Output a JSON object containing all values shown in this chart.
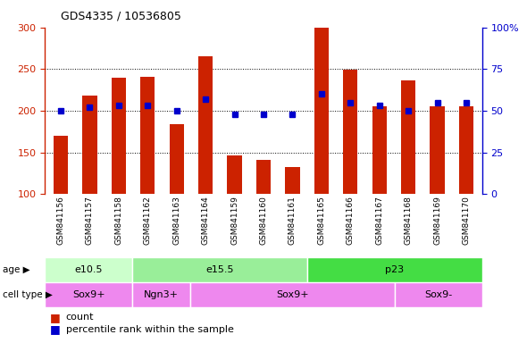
{
  "title": "GDS4335 / 10536805",
  "samples": [
    "GSM841156",
    "GSM841157",
    "GSM841158",
    "GSM841162",
    "GSM841163",
    "GSM841164",
    "GSM841159",
    "GSM841160",
    "GSM841161",
    "GSM841165",
    "GSM841166",
    "GSM841167",
    "GSM841168",
    "GSM841169",
    "GSM841170"
  ],
  "counts": [
    170,
    218,
    240,
    241,
    184,
    265,
    146,
    141,
    132,
    300,
    249,
    205,
    237,
    205,
    205
  ],
  "percentiles": [
    50,
    52,
    53,
    53,
    50,
    57,
    48,
    48,
    48,
    60,
    55,
    53,
    50,
    55,
    55
  ],
  "ylim_left": [
    100,
    300
  ],
  "ylim_right": [
    0,
    100
  ],
  "yticks_left": [
    100,
    150,
    200,
    250,
    300
  ],
  "yticks_right": [
    0,
    25,
    50,
    75,
    100
  ],
  "age_groups": [
    {
      "label": "e10.5",
      "start": 0,
      "end": 3,
      "color": "#ccffcc"
    },
    {
      "label": "e15.5",
      "start": 3,
      "end": 9,
      "color": "#99ee99"
    },
    {
      "label": "p23",
      "start": 9,
      "end": 15,
      "color": "#44dd44"
    }
  ],
  "cell_type_groups": [
    {
      "label": "Sox9+",
      "start": 0,
      "end": 3,
      "color": "#ee88ee"
    },
    {
      "label": "Ngn3+",
      "start": 3,
      "end": 5,
      "color": "#ee88ee"
    },
    {
      "label": "Sox9+",
      "start": 5,
      "end": 12,
      "color": "#ee88ee"
    },
    {
      "label": "Sox9-",
      "start": 12,
      "end": 15,
      "color": "#ee88ee"
    }
  ],
  "bar_color": "#cc2200",
  "dot_color": "#0000cc",
  "left_axis_color": "#cc2200",
  "right_axis_color": "#0000cc",
  "xtick_bg_color": "#cccccc",
  "plot_bg_color": "#ffffff"
}
